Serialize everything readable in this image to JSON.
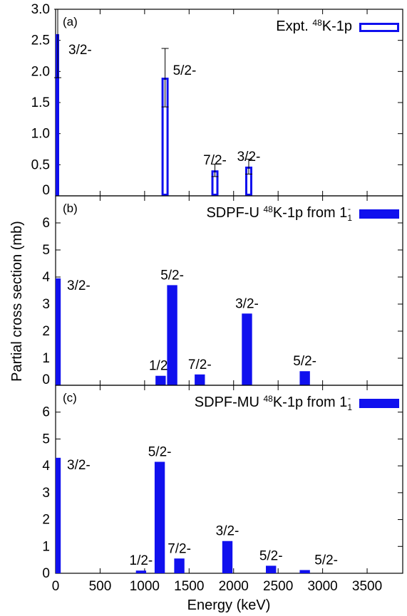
{
  "chart_data": {
    "type": "bar",
    "xlabel": "Energy (keV)",
    "ylabel": "Partial cross section (mb)",
    "xlim": [
      0,
      3900
    ],
    "x_ticks": [
      0,
      500,
      1000,
      1500,
      2000,
      2500,
      3000,
      3500
    ],
    "x_tick_labels": [
      "0",
      "500",
      "1000",
      "1500",
      "2000",
      "2500",
      "3000",
      "3500"
    ],
    "colors": {
      "bar": "#1010ee",
      "axis": "#000000"
    },
    "panels": [
      {
        "tag": "(a)",
        "legend": {
          "pre": "Expt. ",
          "sup": "48",
          "post": "K-1p",
          "sub": "",
          "post2": "",
          "sup2": "",
          "marker": "open"
        },
        "ylim": [
          0,
          3.0
        ],
        "y_ticks": [
          0,
          0.5,
          1.0,
          1.5,
          2.0,
          2.5,
          3.0
        ],
        "y_tick_labels": [
          "0",
          "0.5",
          "1.0",
          "1.5",
          "2.0",
          "2.5",
          "3.0"
        ],
        "bar_style": "open",
        "bar_width": 80,
        "bars": [
          {
            "x": 0,
            "y": 2.6,
            "err": 0.7,
            "label": "3/2-"
          },
          {
            "x": 1230,
            "y": 1.9,
            "err": 0.47,
            "label": "5/2-"
          },
          {
            "x": 1790,
            "y": 0.41,
            "err": 0.1,
            "label": "7/2-"
          },
          {
            "x": 2170,
            "y": 0.47,
            "err": 0.12,
            "label": "3/2-"
          }
        ]
      },
      {
        "tag": "(b)",
        "legend": {
          "pre": "SDPF-U ",
          "sup": "48",
          "post": "K-1p from 1",
          "sub": "1",
          "post2": "",
          "sup2": "-",
          "marker": "filled"
        },
        "ylim": [
          0,
          7
        ],
        "y_ticks": [
          0,
          1,
          2,
          3,
          4,
          5,
          6
        ],
        "y_tick_labels": [
          "0",
          "1",
          "2",
          "3",
          "4",
          "5",
          "6"
        ],
        "bar_style": "filled",
        "bar_width": 115,
        "bars": [
          {
            "x": 0,
            "y": 3.95,
            "label": "3/2-"
          },
          {
            "x": 1180,
            "y": 0.35,
            "label": "1/2-"
          },
          {
            "x": 1310,
            "y": 3.7,
            "label": "5/2-"
          },
          {
            "x": 1620,
            "y": 0.4,
            "label": "7/2-"
          },
          {
            "x": 2150,
            "y": 2.65,
            "label": "3/2-"
          },
          {
            "x": 2800,
            "y": 0.52,
            "label": "5/2-"
          }
        ]
      },
      {
        "tag": "(c)",
        "legend": {
          "pre": "SDPF-MU ",
          "sup": "48",
          "post": "K-1p from 1",
          "sub": "1",
          "post2": "",
          "sup2": "-",
          "marker": "filled"
        },
        "ylim": [
          0,
          7
        ],
        "y_ticks": [
          0,
          1,
          2,
          3,
          4,
          5,
          6
        ],
        "y_tick_labels": [
          "0",
          "1",
          "2",
          "3",
          "4",
          "5",
          "6"
        ],
        "bar_style": "filled",
        "bar_width": 115,
        "bars": [
          {
            "x": 0,
            "y": 4.3,
            "label": "3/2-"
          },
          {
            "x": 960,
            "y": 0.1,
            "label": "1/2-"
          },
          {
            "x": 1170,
            "y": 4.15,
            "label": "5/2-"
          },
          {
            "x": 1390,
            "y": 0.55,
            "label": "7/2-"
          },
          {
            "x": 1930,
            "y": 1.2,
            "label": "3/2-"
          },
          {
            "x": 2420,
            "y": 0.28,
            "label": "5/2-"
          },
          {
            "x": 2800,
            "y": 0.12,
            "label": "5/2-"
          }
        ]
      }
    ]
  }
}
